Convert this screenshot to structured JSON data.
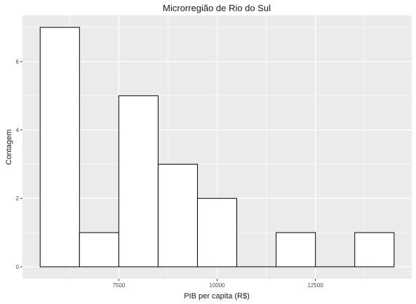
{
  "chart_data": {
    "type": "bar",
    "title": "Microrregião de  Rio do Sul",
    "xlabel": "PIB per capita (R$)",
    "ylabel": "Contagem",
    "bin_width": 1000,
    "bins": [
      {
        "x_start": 5500,
        "x_end": 6500,
        "count": 7
      },
      {
        "x_start": 6500,
        "x_end": 7500,
        "count": 1
      },
      {
        "x_start": 7500,
        "x_end": 8500,
        "count": 5
      },
      {
        "x_start": 8500,
        "x_end": 9500,
        "count": 3
      },
      {
        "x_start": 9500,
        "x_end": 10500,
        "count": 2
      },
      {
        "x_start": 10500,
        "x_end": 11500,
        "count": 0
      },
      {
        "x_start": 11500,
        "x_end": 12500,
        "count": 1
      },
      {
        "x_start": 12500,
        "x_end": 13500,
        "count": 0
      },
      {
        "x_start": 13500,
        "x_end": 14500,
        "count": 1
      }
    ],
    "xlim": [
      5050,
      14950
    ],
    "ylim": [
      -0.35,
      7.35
    ],
    "x_ticks": [
      7500,
      10000,
      12500
    ],
    "x_tick_labels": [
      "7500",
      "10000",
      "12500"
    ],
    "y_ticks": [
      0,
      2,
      4,
      6
    ],
    "y_tick_labels": [
      "0",
      "2",
      "4",
      "6"
    ],
    "grid": true,
    "colors": {
      "panel_background": "#EBEBEB",
      "grid_major": "#FFFFFF",
      "bar_fill": "#FFFFFF",
      "bar_outline": "#000000"
    }
  }
}
